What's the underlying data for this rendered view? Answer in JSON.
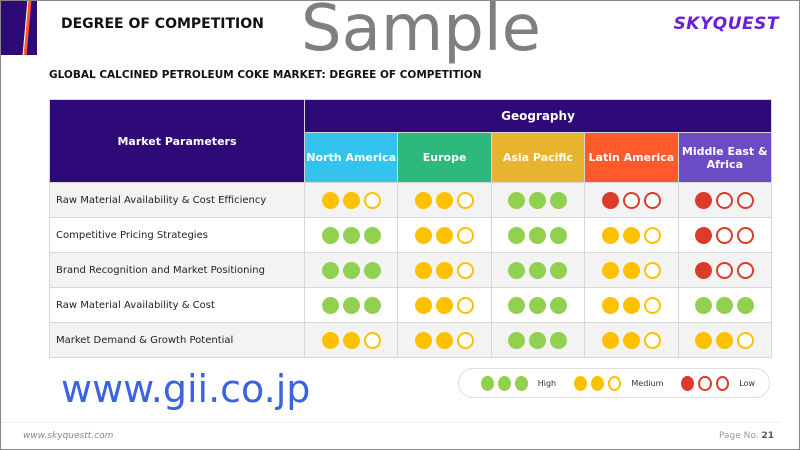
{
  "header": {
    "title": "DEGREE OF COMPETITION",
    "logo": "SKYQUEST"
  },
  "subtitle": "GLOBAL CALCINED PETROLEUM COKE MARKET: DEGREE OF COMPETITION",
  "table": {
    "param_header": "Market Parameters",
    "group_header": "Geography",
    "regions": [
      {
        "label": "North America",
        "color": "#33c3ee"
      },
      {
        "label": "Europe",
        "color": "#2db87c"
      },
      {
        "label": "Asia Pacific",
        "color": "#e8b430"
      },
      {
        "label": "Latin America",
        "color": "#ff5a2c"
      },
      {
        "label": "Middle East & Africa",
        "color": "#6c4cc4"
      }
    ],
    "rows": [
      {
        "param": "Raw Material Availability & Cost Efficiency",
        "ratings": [
          "medium",
          "medium",
          "high",
          "low",
          "low"
        ]
      },
      {
        "param": "Competitive Pricing Strategies",
        "ratings": [
          "high",
          "medium",
          "high",
          "medium",
          "low"
        ]
      },
      {
        "param": "Brand Recognition and Market Positioning",
        "ratings": [
          "high",
          "medium",
          "high",
          "medium",
          "low"
        ]
      },
      {
        "param": "Raw Material Availability & Cost",
        "ratings": [
          "high",
          "medium",
          "high",
          "medium",
          "high"
        ]
      },
      {
        "param": "Market Demand & Growth Potential",
        "ratings": [
          "medium",
          "medium",
          "high",
          "medium",
          "medium"
        ]
      }
    ]
  },
  "legend": {
    "high": "High",
    "medium": "Medium",
    "low": "Low"
  },
  "rating_colors": {
    "high": "#92d050",
    "medium": "#ffc000",
    "low": "#dc3b2a"
  },
  "footer": {
    "url": "www.skyquestt.com",
    "page_label": "Page No.",
    "page_number": "21"
  },
  "watermarks": {
    "sample": "Sample",
    "site": "www.gii.co.jp"
  }
}
